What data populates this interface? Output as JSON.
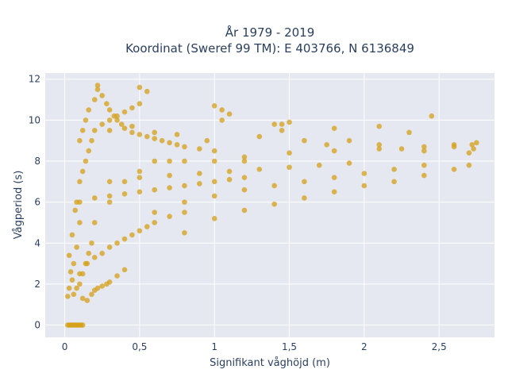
{
  "chart_data": {
    "type": "scatter",
    "title_line1": "År 1979 - 2019",
    "title_line2": "Koordinat (Sweref 99 TM): E 403766, N 6136849",
    "xlabel": "Signifikant våghöjd (m)",
    "ylabel": "Vågperiod (s)",
    "xlim": [
      -0.13,
      2.87
    ],
    "ylim": [
      -0.6,
      12.3
    ],
    "x_ticks": [
      0,
      0.5,
      1,
      1.5,
      2,
      2.5
    ],
    "x_tick_labels": [
      "0",
      "0,5",
      "1",
      "1,5",
      "2",
      "2,5"
    ],
    "y_ticks": [
      0,
      2,
      4,
      6,
      8,
      10,
      12
    ],
    "y_tick_labels": [
      "0",
      "2",
      "4",
      "6",
      "8",
      "10",
      "12"
    ],
    "grid": true,
    "colors": {
      "marker": "#d4a017",
      "plot_bg": "#e5e8f1",
      "grid": "#ffffff",
      "text": "#2a3f5f"
    },
    "series": [
      {
        "x": [
          0.02,
          0.04,
          0.06,
          0.08,
          0.1,
          0.12,
          0.03,
          0.05,
          0.07,
          0.09,
          0.11,
          0.02,
          0.03,
          0.05,
          0.04,
          0.06,
          0.03,
          0.08,
          0.05,
          0.1,
          0.07,
          0.15,
          0.18,
          0.2,
          0.25,
          0.3,
          0.35,
          0.4,
          0.12,
          0.22,
          0.28,
          0.1,
          0.15,
          0.2,
          0.25,
          0.3,
          0.35,
          0.4,
          0.45,
          0.5,
          0.55,
          0.6,
          0.7,
          0.8,
          0.1,
          0.2,
          0.3,
          0.4,
          0.5,
          0.6,
          0.7,
          0.8,
          0.9,
          1.0,
          1.1,
          1.2,
          0.3,
          0.5,
          0.7,
          0.9,
          1.1,
          1.3,
          1.5,
          1.7,
          1.9,
          0.6,
          0.8,
          1.0,
          1.2,
          1.4,
          1.6,
          1.8,
          2.0,
          2.2,
          2.4,
          0.8,
          1.0,
          1.2,
          1.4,
          1.6,
          1.8,
          2.0,
          2.2,
          2.4,
          2.6,
          2.7,
          1.2,
          1.5,
          1.8,
          2.1,
          2.4,
          2.6,
          2.75,
          2.73,
          2.7,
          0.1,
          0.12,
          0.14,
          0.16,
          0.2,
          0.22,
          0.25,
          0.28,
          0.3,
          0.33,
          0.35,
          0.38,
          0.4,
          0.45,
          0.5,
          0.55,
          0.6,
          0.65,
          0.7,
          0.75,
          0.8,
          0.9,
          1.0,
          0.3,
          0.45,
          0.6,
          0.75,
          0.95,
          1.05,
          1.1,
          1.3,
          1.45,
          1.6,
          1.75,
          1.9,
          2.1,
          2.25,
          2.4,
          2.6,
          2.72,
          0.08,
          0.1,
          0.12,
          0.14,
          0.16,
          0.18,
          0.2,
          0.25,
          0.3,
          0.35,
          0.4,
          0.45,
          0.5,
          0.06,
          0.08,
          0.1,
          0.12,
          0.14,
          0.16,
          0.18,
          0.2,
          0.3,
          0.4,
          0.5,
          0.6,
          0.7,
          0.8,
          1.0,
          1.2,
          0.22,
          0.5,
          0.55,
          1.0,
          1.05,
          1.4,
          1.45,
          1.5,
          1.8,
          2.1,
          2.3,
          2.45
        ],
        "y": [
          0,
          0,
          0,
          0,
          0,
          0,
          0,
          0,
          0,
          0,
          0,
          1.4,
          1.8,
          2.2,
          2.6,
          3.0,
          3.4,
          3.8,
          4.4,
          5.0,
          5.6,
          1.2,
          1.5,
          1.7,
          1.9,
          2.1,
          2.4,
          2.7,
          1.3,
          1.8,
          2.0,
          2.5,
          3.0,
          3.3,
          3.5,
          3.8,
          4.0,
          4.2,
          4.4,
          4.6,
          4.8,
          5.0,
          5.3,
          5.5,
          6.0,
          6.2,
          6.3,
          6.4,
          6.5,
          6.6,
          6.7,
          6.8,
          6.9,
          7.0,
          7.1,
          7.2,
          7.0,
          7.2,
          7.3,
          7.4,
          7.5,
          7.6,
          7.7,
          7.8,
          7.9,
          5.5,
          6.0,
          6.3,
          6.6,
          6.8,
          7.0,
          7.2,
          7.4,
          7.6,
          7.8,
          4.5,
          5.2,
          5.6,
          5.9,
          6.2,
          6.5,
          6.8,
          7.0,
          7.3,
          7.6,
          7.8,
          8.2,
          8.4,
          8.5,
          8.6,
          8.7,
          8.8,
          8.9,
          8.6,
          8.4,
          9.0,
          9.5,
          10.0,
          10.5,
          11.0,
          11.5,
          11.2,
          10.8,
          10.5,
          10.2,
          10.0,
          9.8,
          9.6,
          9.4,
          9.3,
          9.2,
          9.1,
          9.0,
          8.9,
          8.8,
          8.7,
          8.6,
          8.5,
          9.5,
          9.7,
          9.4,
          9.3,
          9.0,
          10.0,
          10.3,
          9.2,
          9.8,
          9.0,
          8.8,
          9.0,
          8.8,
          8.6,
          8.5,
          8.7,
          8.8,
          6.0,
          7.0,
          7.5,
          8.0,
          8.5,
          9.0,
          9.5,
          9.8,
          10.0,
          10.2,
          10.4,
          10.6,
          10.8,
          1.5,
          1.8,
          2.0,
          2.5,
          3.0,
          3.5,
          4.0,
          5.0,
          6.0,
          7.0,
          7.5,
          8.0,
          8.0,
          8.0,
          8.0,
          8.0,
          11.7,
          11.6,
          11.4,
          10.7,
          10.5,
          9.8,
          9.5,
          9.9,
          9.6,
          9.7,
          9.4,
          10.2
        ]
      }
    ]
  }
}
